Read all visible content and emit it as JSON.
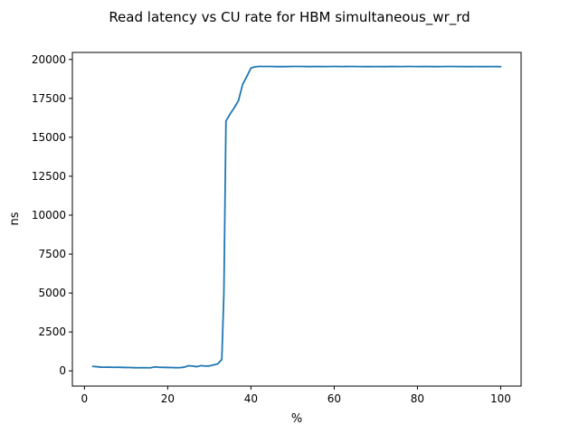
{
  "chart_data": {
    "type": "line",
    "title": "Read latency vs CU rate for HBM simultaneous_wr_rd",
    "xlabel": "%",
    "ylabel": "ns",
    "xlim": [
      -2.9,
      104.9
    ],
    "ylim": [
      -975,
      20450
    ],
    "xticks": [
      0,
      20,
      40,
      60,
      80,
      100
    ],
    "yticks": [
      0,
      2500,
      5000,
      7500,
      10000,
      12500,
      15000,
      17500,
      20000
    ],
    "grid": false,
    "line_color": "#1f77b4",
    "series": [
      {
        "x": [
          2,
          3,
          4,
          5,
          6,
          7,
          8,
          9,
          10,
          11,
          12,
          13,
          14,
          15,
          16,
          17,
          18,
          19,
          20,
          21,
          22,
          23,
          24,
          25,
          26,
          27,
          28,
          29,
          30,
          31,
          32,
          33,
          33.5,
          34,
          35,
          36,
          37,
          38,
          39,
          40,
          41,
          42,
          43,
          44,
          45,
          46,
          48,
          50,
          52,
          54,
          56,
          58,
          60,
          62,
          64,
          66,
          68,
          70,
          72,
          74,
          76,
          78,
          80,
          82,
          84,
          86,
          88,
          90,
          92,
          94,
          96,
          98,
          100
        ],
        "y": [
          290,
          270,
          240,
          235,
          240,
          230,
          235,
          225,
          220,
          215,
          205,
          200,
          205,
          200,
          205,
          260,
          230,
          225,
          220,
          215,
          205,
          210,
          240,
          330,
          310,
          270,
          340,
          310,
          320,
          380,
          450,
          730,
          5000,
          16050,
          16500,
          16900,
          17350,
          18400,
          18900,
          19450,
          19530,
          19550,
          19550,
          19550,
          19550,
          19540,
          19540,
          19550,
          19550,
          19540,
          19550,
          19545,
          19550,
          19545,
          19550,
          19545,
          19540,
          19545,
          19540,
          19550,
          19545,
          19550,
          19545,
          19550,
          19540,
          19545,
          19550,
          19545,
          19540,
          19545,
          19540,
          19545,
          19540
        ]
      }
    ]
  }
}
